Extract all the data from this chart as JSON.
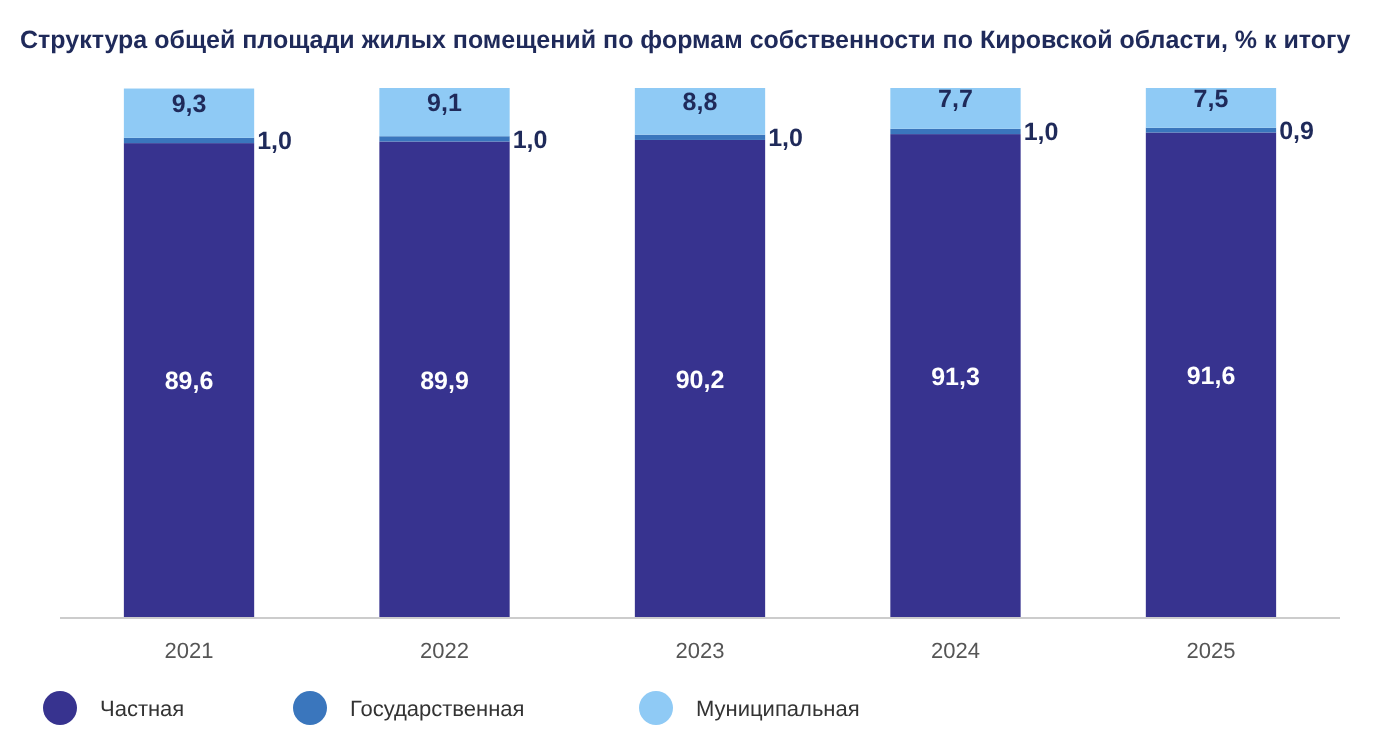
{
  "chart_data": {
    "type": "bar",
    "stacked": true,
    "title": "Структура общей площади жилых помещений по формам собственности по Кировской области, % к итогу",
    "categories": [
      "2021",
      "2022",
      "2023",
      "2024",
      "2025"
    ],
    "series": [
      {
        "name": "Частная",
        "color": "#37338f",
        "values": [
          89.6,
          89.9,
          90.2,
          91.3,
          91.6
        ],
        "value_labels": [
          "89,6",
          "89,9",
          "90,2",
          "91,3",
          "91,6"
        ]
      },
      {
        "name": "Государственная",
        "color": "#3a76bd",
        "values": [
          1.0,
          1.0,
          1.0,
          1.0,
          0.9
        ],
        "value_labels": [
          "1,0",
          "1,0",
          "1,0",
          "1,0",
          "0,9"
        ]
      },
      {
        "name": "Муниципальная",
        "color": "#8fcaf5",
        "values": [
          9.3,
          9.1,
          8.8,
          7.7,
          7.5
        ],
        "value_labels": [
          "9,3",
          "9,1",
          "8,8",
          "7,7",
          "7,5"
        ]
      }
    ],
    "legend": "bottom"
  }
}
